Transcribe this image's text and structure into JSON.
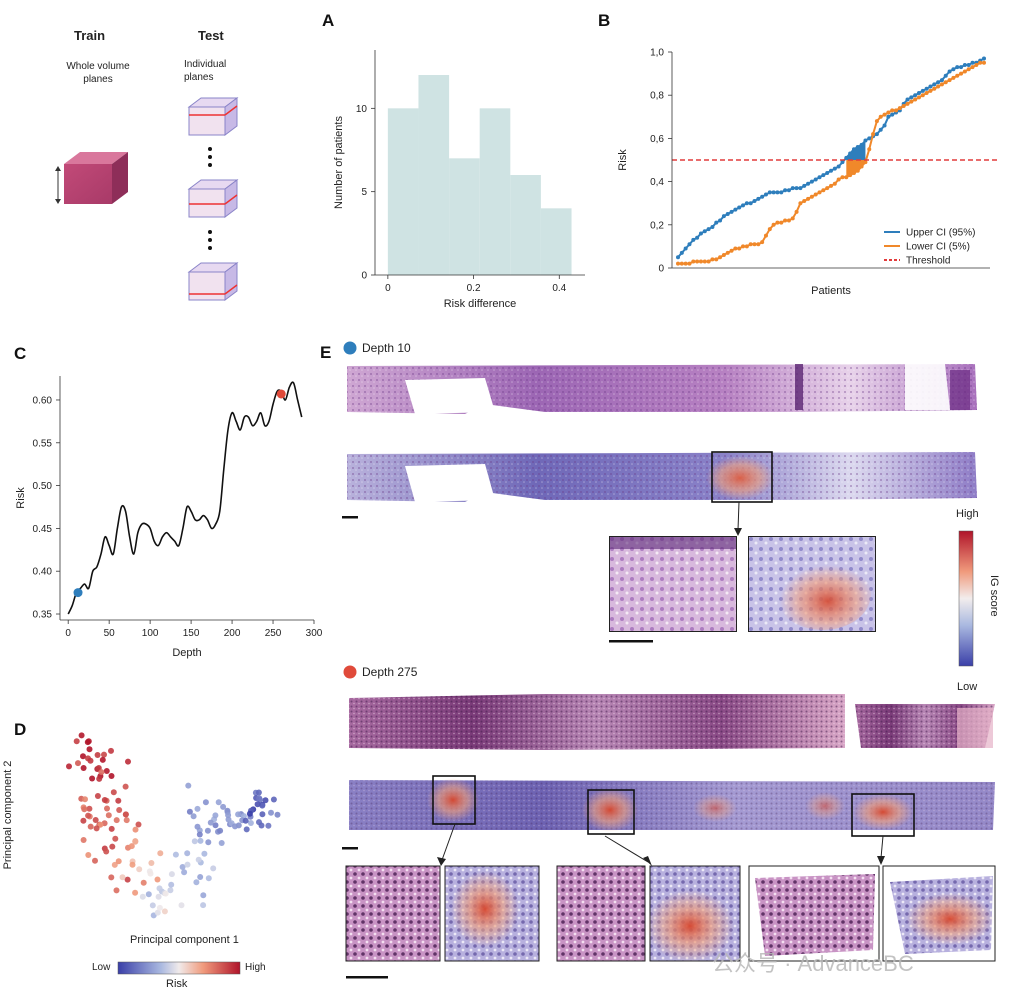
{
  "schematic": {
    "train_title": "Train",
    "train_sub": "Whole volume\nplanes",
    "test_title": "Test",
    "test_sub": "Individual\nplanes"
  },
  "panels": {
    "A": "A",
    "B": "B",
    "C": "C",
    "D": "D",
    "E": "E"
  },
  "chart_data": [
    {
      "id": "A",
      "type": "bar",
      "xlabel": "Risk difference",
      "ylabel": "Number of patients",
      "bin_edges": [
        0,
        0.0714,
        0.1429,
        0.2143,
        0.2857,
        0.3571,
        0.4286
      ],
      "values": [
        10,
        12,
        7,
        10,
        6,
        4
      ],
      "xticks": [
        "0",
        "0.2",
        "0.4"
      ],
      "xtick_values": [
        0,
        0.2,
        0.4
      ],
      "yticks": [
        "0",
        "5",
        "10"
      ],
      "ytick_values": [
        0,
        5,
        10
      ],
      "xlim": [
        -0.03,
        0.46
      ],
      "ylim": [
        0,
        13.5
      ],
      "color": "#cfe3e3"
    },
    {
      "id": "B",
      "type": "line",
      "xlabel": "Patients",
      "ylabel": "Risk",
      "yticks": [
        "0",
        "0,2",
        "0,4",
        "0,6",
        "0,8",
        "1,0"
      ],
      "ytick_values": [
        0,
        0.2,
        0.4,
        0.6,
        0.8,
        1.0
      ],
      "ylim": [
        0,
        1.0
      ],
      "threshold": 0.5,
      "series": [
        {
          "name": "Upper CI (95%)",
          "color": "#2e7ebc",
          "values": [
            0.05,
            0.07,
            0.09,
            0.11,
            0.13,
            0.14,
            0.16,
            0.17,
            0.18,
            0.19,
            0.21,
            0.22,
            0.24,
            0.25,
            0.26,
            0.27,
            0.28,
            0.29,
            0.3,
            0.3,
            0.31,
            0.32,
            0.33,
            0.34,
            0.35,
            0.35,
            0.35,
            0.35,
            0.36,
            0.36,
            0.37,
            0.37,
            0.37,
            0.38,
            0.39,
            0.4,
            0.41,
            0.42,
            0.43,
            0.44,
            0.45,
            0.46,
            0.47,
            0.49,
            0.51,
            0.53,
            0.55,
            0.56,
            0.57,
            0.59,
            0.6,
            0.61,
            0.62,
            0.64,
            0.66,
            0.7,
            0.71,
            0.72,
            0.73,
            0.76,
            0.78,
            0.79,
            0.8,
            0.81,
            0.82,
            0.83,
            0.84,
            0.85,
            0.86,
            0.87,
            0.89,
            0.91,
            0.92,
            0.93,
            0.93,
            0.94,
            0.94,
            0.95,
            0.95,
            0.96,
            0.97
          ]
        },
        {
          "name": "Lower CI (5%)",
          "color": "#f0882a",
          "values": [
            0.02,
            0.02,
            0.02,
            0.02,
            0.03,
            0.03,
            0.03,
            0.03,
            0.03,
            0.04,
            0.04,
            0.05,
            0.06,
            0.07,
            0.08,
            0.09,
            0.09,
            0.1,
            0.1,
            0.11,
            0.11,
            0.11,
            0.12,
            0.15,
            0.18,
            0.2,
            0.21,
            0.21,
            0.22,
            0.22,
            0.23,
            0.26,
            0.3,
            0.31,
            0.32,
            0.33,
            0.34,
            0.35,
            0.36,
            0.37,
            0.38,
            0.39,
            0.41,
            0.42,
            0.42,
            0.43,
            0.44,
            0.45,
            0.47,
            0.49,
            0.55,
            0.62,
            0.68,
            0.7,
            0.71,
            0.72,
            0.73,
            0.73,
            0.74,
            0.75,
            0.76,
            0.77,
            0.78,
            0.79,
            0.8,
            0.81,
            0.82,
            0.83,
            0.84,
            0.85,
            0.86,
            0.87,
            0.88,
            0.89,
            0.9,
            0.91,
            0.92,
            0.93,
            0.94,
            0.95,
            0.95
          ]
        }
      ],
      "legend": [
        "Upper CI (95%)",
        "Lower CI (5%)",
        "Threshold"
      ],
      "threshold_color": "#e23b3b",
      "legend_position": "bottom-right"
    },
    {
      "id": "C",
      "type": "line",
      "xlabel": "Depth",
      "ylabel": "Risk",
      "xlim": [
        -10,
        300
      ],
      "ylim": [
        0.343,
        0.628
      ],
      "xticks": [
        "0",
        "50",
        "100",
        "150",
        "200",
        "250",
        "300"
      ],
      "xtick_values": [
        0,
        50,
        100,
        150,
        200,
        250,
        300
      ],
      "yticks": [
        "0.35",
        "0.40",
        "0.45",
        "0.50",
        "0.55",
        "0.60"
      ],
      "ytick_values": [
        0.35,
        0.4,
        0.45,
        0.5,
        0.55,
        0.6
      ],
      "x": [
        0,
        5,
        10,
        15,
        20,
        25,
        30,
        35,
        40,
        45,
        50,
        55,
        60,
        65,
        70,
        75,
        80,
        85,
        90,
        95,
        100,
        105,
        110,
        115,
        120,
        125,
        130,
        135,
        140,
        145,
        150,
        155,
        160,
        165,
        170,
        175,
        180,
        185,
        190,
        195,
        200,
        205,
        210,
        215,
        220,
        225,
        230,
        235,
        240,
        245,
        250,
        255,
        260,
        265,
        270,
        275,
        280,
        285
      ],
      "y": [
        0.35,
        0.36,
        0.375,
        0.38,
        0.385,
        0.38,
        0.4,
        0.405,
        0.42,
        0.44,
        0.43,
        0.42,
        0.45,
        0.475,
        0.47,
        0.44,
        0.42,
        0.445,
        0.455,
        0.455,
        0.45,
        0.435,
        0.43,
        0.44,
        0.445,
        0.44,
        0.435,
        0.43,
        0.45,
        0.475,
        0.47,
        0.46,
        0.46,
        0.465,
        0.46,
        0.45,
        0.455,
        0.47,
        0.52,
        0.565,
        0.585,
        0.575,
        0.565,
        0.58,
        0.58,
        0.57,
        0.575,
        0.585,
        0.57,
        0.575,
        0.595,
        0.61,
        0.61,
        0.6,
        0.615,
        0.62,
        0.6,
        0.58
      ],
      "markers": [
        {
          "x": 12,
          "y": 0.375,
          "color": "#2e7ebc"
        },
        {
          "x": 260,
          "y": 0.607,
          "color": "#e04a3a"
        }
      ],
      "line_color": "#111111"
    },
    {
      "id": "D",
      "type": "scatter",
      "xlabel": "Principal component 1",
      "ylabel": "Principal component 2",
      "colorbar": {
        "title": "Risk",
        "low": "Low",
        "high": "High"
      },
      "clusters": [
        {
          "cx": 0.15,
          "cy": 0.78,
          "sx": 0.05,
          "sy": 0.08,
          "n": 25,
          "risk": 0.95
        },
        {
          "cx": 0.2,
          "cy": 0.5,
          "sx": 0.06,
          "sy": 0.1,
          "n": 40,
          "risk": 0.82
        },
        {
          "cx": 0.35,
          "cy": 0.3,
          "sx": 0.05,
          "sy": 0.06,
          "n": 14,
          "risk": 0.68
        },
        {
          "cx": 0.43,
          "cy": 0.15,
          "sx": 0.05,
          "sy": 0.06,
          "n": 18,
          "risk": 0.45
        },
        {
          "cx": 0.58,
          "cy": 0.3,
          "sx": 0.05,
          "sy": 0.08,
          "n": 18,
          "risk": 0.35
        },
        {
          "cx": 0.7,
          "cy": 0.52,
          "sx": 0.06,
          "sy": 0.06,
          "n": 30,
          "risk": 0.25
        },
        {
          "cx": 0.88,
          "cy": 0.55,
          "sx": 0.05,
          "sy": 0.06,
          "n": 22,
          "risk": 0.12
        }
      ]
    }
  ],
  "panel_e": {
    "depth10_label": "Depth 10",
    "depth275_label": "Depth 275",
    "colorbar_title": "IG score",
    "colorbar_high": "High",
    "colorbar_low": "Low",
    "depth10_color": "#2e7ebc",
    "depth275_color": "#e04a3a"
  },
  "watermark": "公众号 · AdvanceBC"
}
